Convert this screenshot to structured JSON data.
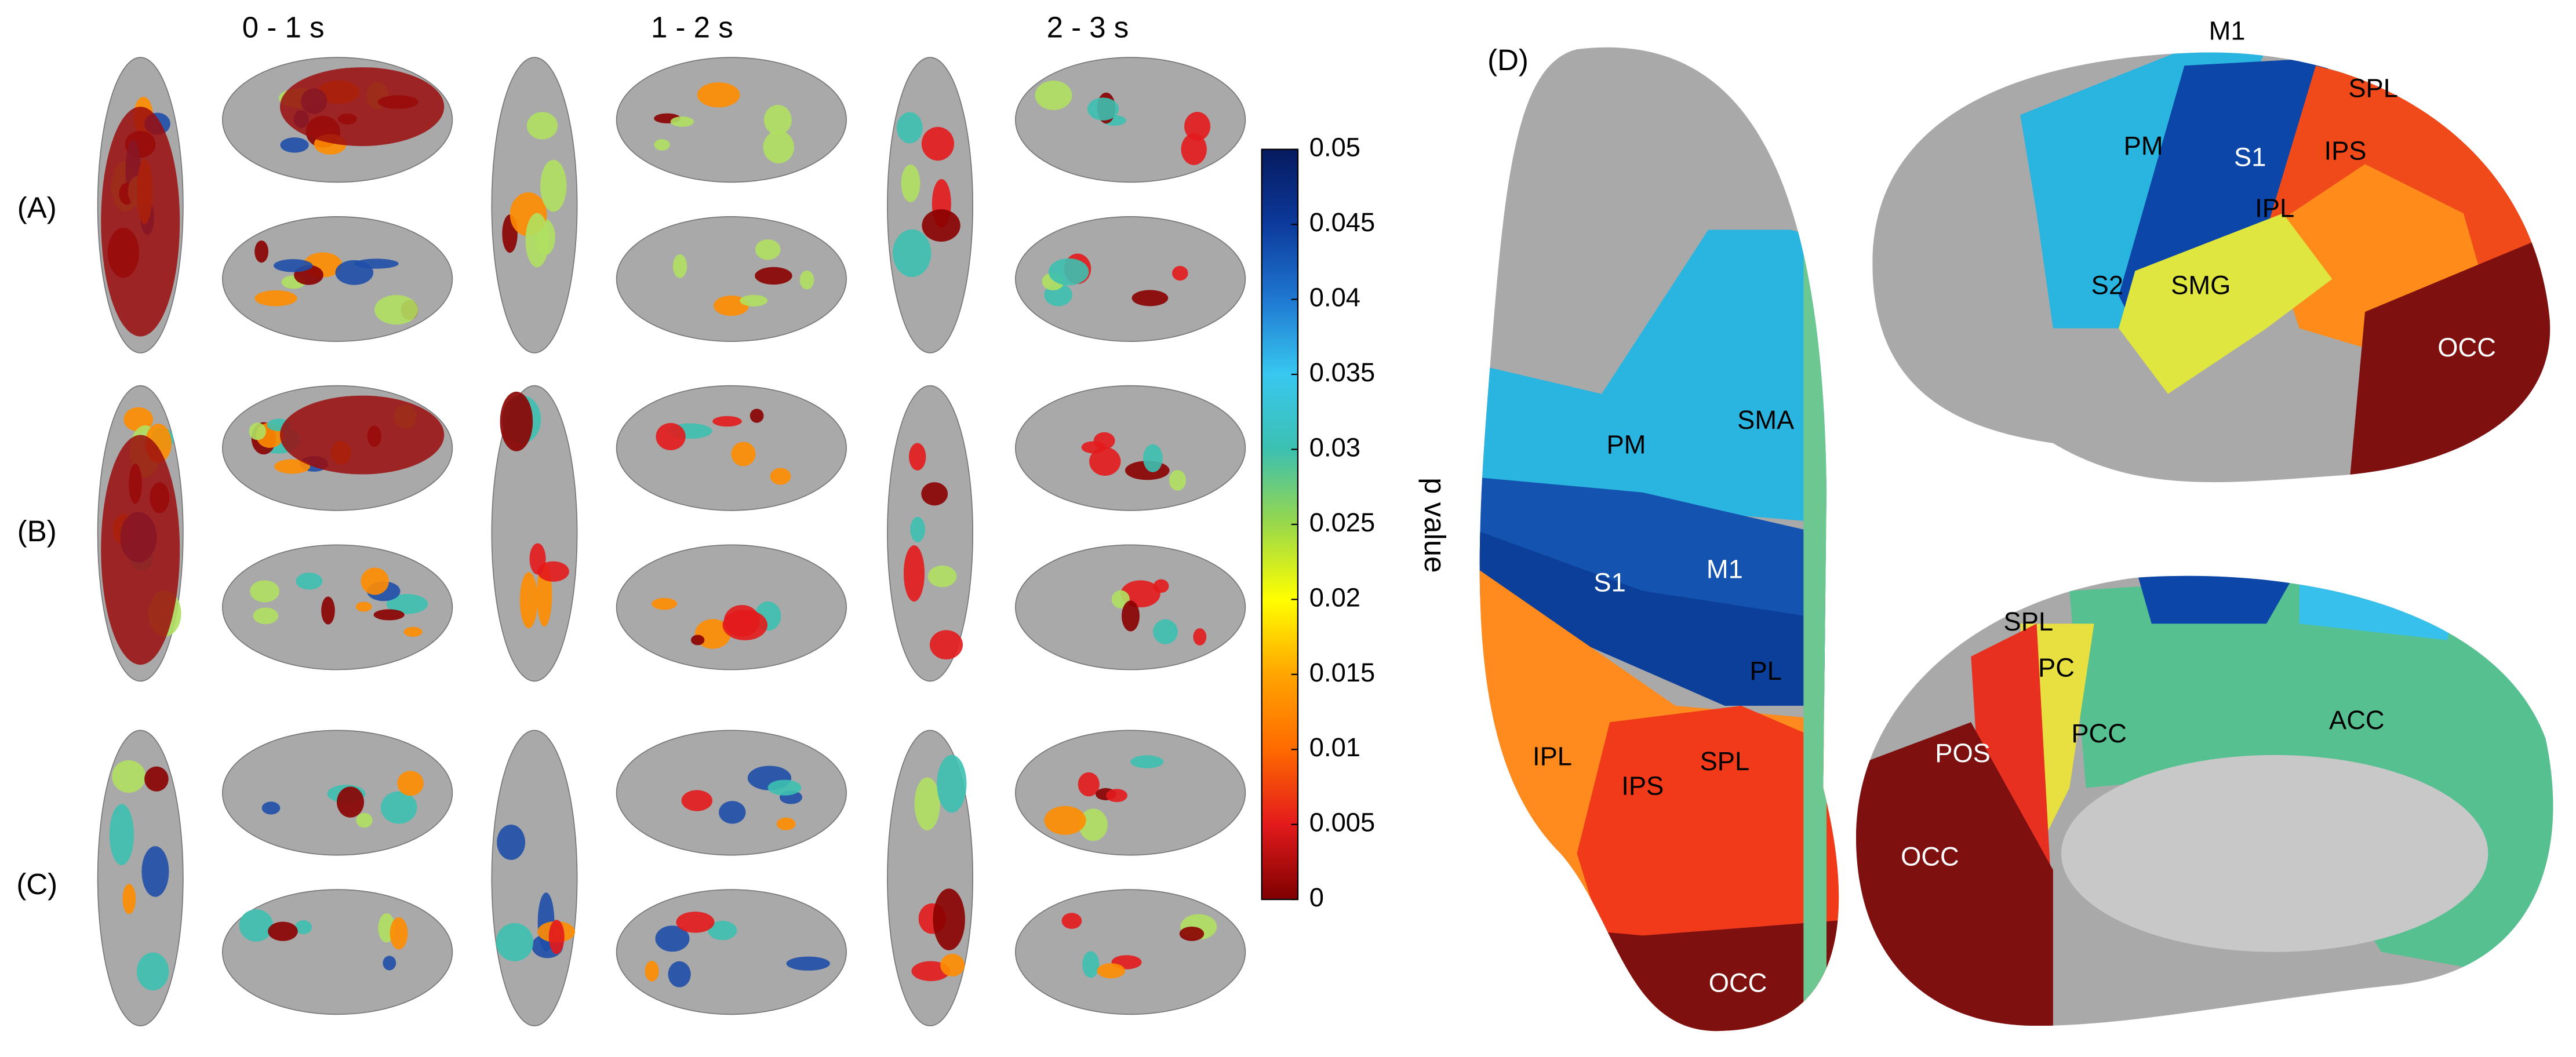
{
  "panels": {
    "columns": [
      "0 - 1 s",
      "1 - 2 s",
      "2 - 3 s"
    ],
    "rows": [
      "(A)",
      "(B)",
      "(C)"
    ],
    "d_label": "(D)"
  },
  "colorbar": {
    "label": "p value",
    "lim": [
      0,
      0.05
    ],
    "ticks": [
      0,
      0.005,
      0.01,
      0.015,
      0.02,
      0.025,
      0.03,
      0.035,
      0.04,
      0.045,
      0.05
    ],
    "colors": [
      "#7f0000",
      "#e31a1c",
      "#ff6a00",
      "#ffa500",
      "#ffff00",
      "#9ad84a",
      "#3cc0b0",
      "#38c8f0",
      "#1f78d1",
      "#0c3a9c",
      "#061a5e"
    ]
  },
  "panel_d": {
    "dorsal": [
      "PM",
      "SMA",
      "S1",
      "M1",
      "PL",
      "IPL",
      "IPS",
      "SPL",
      "OCC"
    ],
    "lateral": [
      "M1",
      "SPL",
      "PM",
      "S1",
      "IPS",
      "IPL",
      "S2",
      "SMG",
      "OCC"
    ],
    "medial": [
      "SPL",
      "PC",
      "PCC",
      "ACC",
      "POS",
      "OCC"
    ]
  }
}
